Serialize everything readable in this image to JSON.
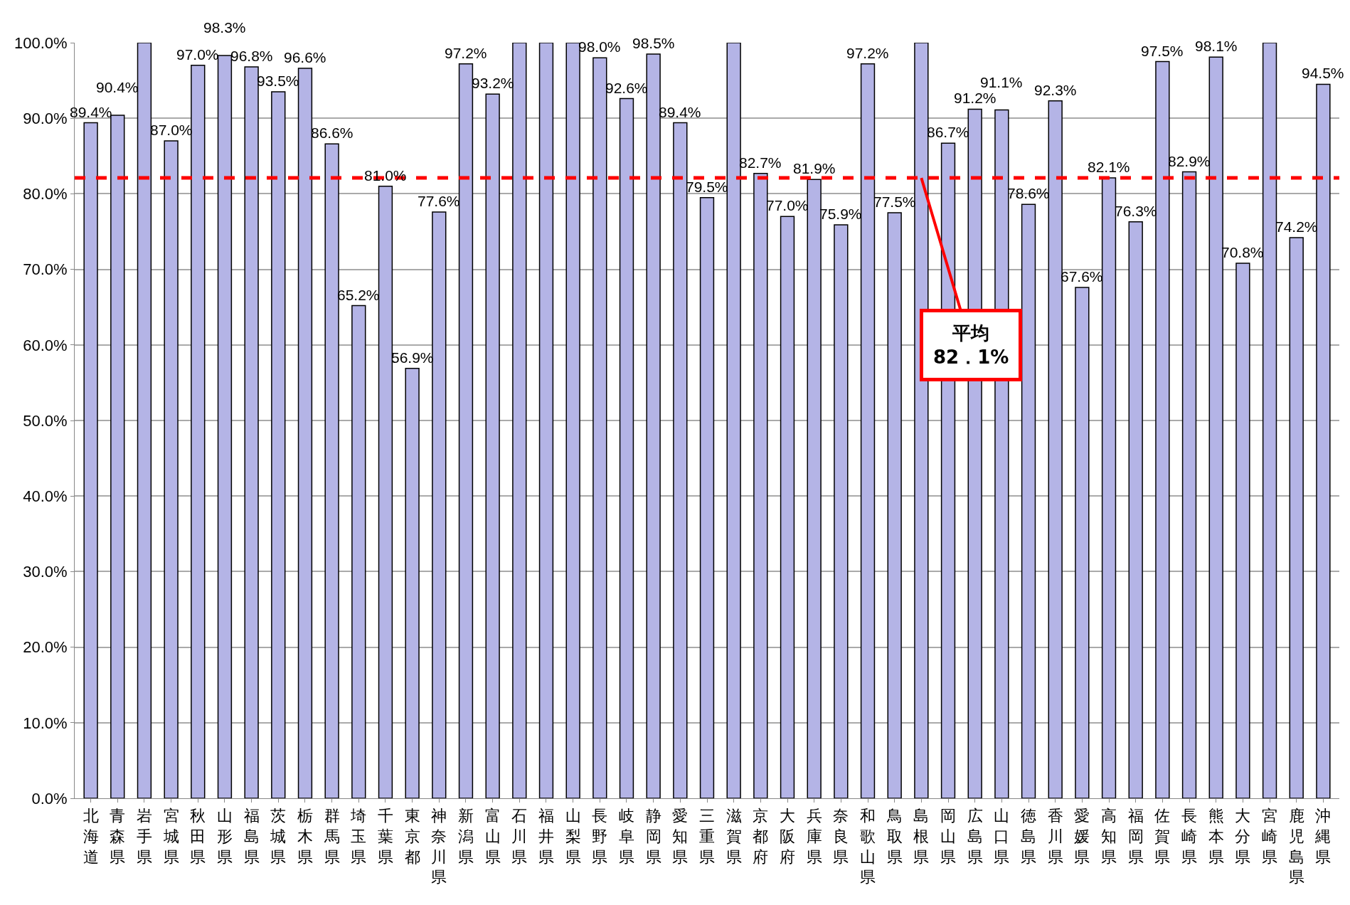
{
  "chart_data": {
    "type": "bar",
    "categories": [
      "北海道",
      "青森県",
      "岩手県",
      "宮城県",
      "秋田県",
      "山形県",
      "福島県",
      "茨城県",
      "栃木県",
      "群馬県",
      "埼玉県",
      "千葉県",
      "東京都",
      "神奈川県",
      "新潟県",
      "富山県",
      "石川県",
      "福井県",
      "山梨県",
      "長野県",
      "岐阜県",
      "静岡県",
      "愛知県",
      "三重県",
      "滋賀県",
      "京都府",
      "大阪府",
      "兵庫県",
      "奈良県",
      "和歌山県",
      "鳥取県",
      "島根県",
      "岡山県",
      "広島県",
      "山口県",
      "徳島県",
      "香川県",
      "愛媛県",
      "高知県",
      "福岡県",
      "佐賀県",
      "長崎県",
      "熊本県",
      "大分県",
      "宮崎県",
      "鹿児島県",
      "沖縄県"
    ],
    "values": [
      89.4,
      90.4,
      100,
      87.0,
      97.0,
      98.3,
      96.8,
      93.5,
      96.6,
      86.6,
      65.2,
      81.0,
      56.9,
      77.6,
      97.2,
      93.2,
      100,
      100,
      100,
      98.0,
      92.6,
      98.5,
      89.4,
      79.5,
      100,
      82.7,
      77.0,
      81.9,
      75.9,
      97.2,
      77.5,
      100,
      86.7,
      91.2,
      91.1,
      78.6,
      92.3,
      67.6,
      82.1,
      76.3,
      97.5,
      82.9,
      98.1,
      70.8,
      100,
      74.2,
      94.5
    ],
    "value_labels": [
      "89.4%",
      "90.4%",
      null,
      "87.0%",
      "97.0%",
      "98.3%",
      "96.8%",
      "93.5%",
      "96.6%",
      "86.6%",
      "65.2%",
      "81.0%",
      "56.9%",
      "77.6%",
      "97.2%",
      "93.2%",
      null,
      null,
      null,
      "98.0%",
      "92.6%",
      "98.5%",
      "89.4%",
      "79.5%",
      null,
      "82.7%",
      "77.0%",
      "81.9%",
      "75.9%",
      "97.2%",
      "77.5%",
      null,
      "86.7%",
      "91.2%",
      "91.1%",
      "78.6%",
      "92.3%",
      "67.6%",
      "82.1%",
      "76.3%",
      "97.5%",
      "82.9%",
      "98.1%",
      "70.8%",
      null,
      "74.2%",
      "94.5%"
    ],
    "color": "#b4b4e6",
    "ylim": [
      0,
      100
    ],
    "yticks": [
      {
        "value": 0,
        "label": "0.0%"
      },
      {
        "value": 10,
        "label": "10.0%"
      },
      {
        "value": 20,
        "label": "20.0%"
      },
      {
        "value": 30,
        "label": "30.0%"
      },
      {
        "value": 40,
        "label": "40.0%"
      },
      {
        "value": 50,
        "label": "50.0%"
      },
      {
        "value": 60,
        "label": "60.0%"
      },
      {
        "value": 70,
        "label": "70.0%"
      },
      {
        "value": 80,
        "label": "80.0%"
      },
      {
        "value": 90,
        "label": "90.0%"
      },
      {
        "value": 100,
        "label": "100.0%"
      }
    ],
    "grid": "y",
    "ref_lines": [
      {
        "axis": "y",
        "value": 82.1,
        "label": "平均\n82．1%",
        "color": "#ff0000",
        "line_style": "dashed"
      }
    ]
  }
}
